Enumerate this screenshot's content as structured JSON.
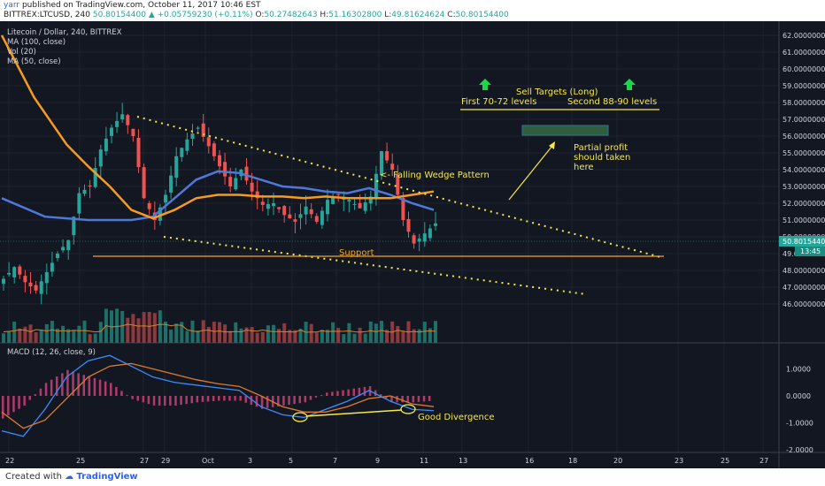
{
  "header": {
    "user": "yarr",
    "published": " published on TradingView.com, October 11, 2017 10:46 EST",
    "symbol": "BITTREX:LTCUSD, 240",
    "last": "50.80154400",
    "change": "▲ +0.05759230 (+0.11%)",
    "o_label": "O:",
    "o": "50.27482643",
    "h_label": "H:",
    "h": "51.16302800",
    "l_label": "L:",
    "l": "49.81624624",
    "c_label": "C:",
    "c": "50.80154400"
  },
  "legend": {
    "title": "Litecoin / Dollar, 240, BITTREX",
    "ma100": "MA (100, close)",
    "vol": "Vol (20)",
    "ma50": "MA (50, close)",
    "macd": "MACD (12, 26, close, 9)"
  },
  "annotations": {
    "sell_title": "Sell Targets (Long)",
    "first": "First 70-72 levels",
    "second": "Second 88-90 levels",
    "partial1": "Partial profit",
    "partial2": "should taken",
    "partial3": "here",
    "wedge": "<- Falling Wedge Pattern",
    "support": "Support",
    "divergence": "Good Divergence"
  },
  "price_badge": {
    "value": "50.80154400",
    "time": "13:45"
  },
  "footer": {
    "created": "Created with",
    "brand": "TradingView"
  },
  "colors": {
    "bg": "#131722",
    "up": "#26a69a",
    "down": "#ef5350",
    "ma100": "#4e79d9",
    "ma50": "#f59b20",
    "annot": "#f5e94a",
    "support": "#f5a623"
  },
  "chart_data": {
    "type": "line",
    "y_axis": {
      "ticks": [
        "62.00000000",
        "61.00000000",
        "60.00000000",
        "59.00000000",
        "58.00000000",
        "57.00000000",
        "56.00000000",
        "55.00000000",
        "54.00000000",
        "53.00000000",
        "52.00000000",
        "51.00000000",
        "50.00000000",
        "49.00000000",
        "48.00000000",
        "47.00000000",
        "46.00000000"
      ],
      "values": [
        62,
        61,
        60,
        59,
        58,
        57,
        56,
        55,
        54,
        53,
        52,
        51,
        50,
        49,
        48,
        47,
        46
      ],
      "ylim": [
        45.6,
        62.4
      ]
    },
    "macd_axis": {
      "ticks": [
        "1.0000",
        "0.0000",
        "-1.0000",
        "-2.0000"
      ],
      "values": [
        1,
        0,
        -1,
        -2
      ]
    },
    "x_axis": {
      "labels": [
        "22",
        "25",
        "27",
        "29",
        "Oct",
        "3",
        "5",
        "7",
        "9",
        "11",
        "13",
        "16",
        "18",
        "20",
        "23",
        "25",
        "27"
      ]
    },
    "series": [
      {
        "x": [
          0,
          2,
          4,
          6,
          8,
          10,
          12,
          14,
          16,
          18,
          20,
          22,
          24,
          26,
          28,
          30,
          32,
          34,
          36,
          38,
          40,
          42,
          44,
          46,
          48,
          50,
          52,
          54,
          56,
          58,
          60,
          62,
          64,
          66,
          68,
          70,
          72,
          74,
          76,
          78,
          80
        ],
        "values": [
          47.5,
          48.2,
          47.3,
          46.8,
          47.9,
          49.0,
          49.8,
          52.6,
          53.0,
          55.2,
          56.5,
          57.3,
          56.0,
          52.3,
          51.0,
          52.5,
          54.8,
          55.8,
          56.5,
          55.4,
          54.2,
          53.0,
          54.0,
          52.7,
          51.9,
          52.0,
          51.3,
          50.9,
          51.8,
          50.9,
          52.2,
          52.5,
          52.2,
          51.7,
          52.4,
          55.1,
          54.0,
          51.0,
          49.6,
          50.2,
          50.8
        ]
      },
      {
        "name": "MA (100, close)",
        "x": [
          0,
          8,
          16,
          24,
          28,
          32,
          36,
          40,
          44,
          48,
          52,
          56,
          60,
          64,
          68,
          72,
          76,
          80
        ],
        "values": [
          52.3,
          51.2,
          51.0,
          51.0,
          51.2,
          52.3,
          53.4,
          53.9,
          53.8,
          53.4,
          53.0,
          52.9,
          52.7,
          52.6,
          52.9,
          52.5,
          52.0,
          51.6
        ]
      },
      {
        "name": "MA (50, close)",
        "x": [
          0,
          6,
          12,
          16,
          20,
          24,
          28,
          32,
          36,
          40,
          44,
          48,
          52,
          56,
          60,
          64,
          68,
          72,
          76,
          80
        ],
        "values": [
          62.0,
          58.3,
          55.5,
          54.2,
          53.0,
          51.6,
          51.1,
          51.6,
          52.3,
          52.5,
          52.5,
          52.4,
          52.4,
          52.3,
          52.4,
          52.3,
          52.3,
          52.3,
          52.5,
          52.7
        ]
      },
      {
        "name": "MACD",
        "x": [
          0,
          4,
          8,
          12,
          16,
          20,
          24,
          28,
          32,
          36,
          40,
          44,
          48,
          52,
          56,
          60,
          64,
          68,
          72,
          76,
          80
        ],
        "values": [
          -1.3,
          -1.5,
          -0.5,
          0.7,
          1.3,
          1.5,
          1.1,
          0.7,
          0.5,
          0.4,
          0.3,
          0.2,
          -0.4,
          -0.7,
          -0.8,
          -0.5,
          -0.2,
          0.2,
          -0.2,
          -0.5,
          -0.55
        ]
      },
      {
        "name": "Signal",
        "x": [
          0,
          4,
          8,
          12,
          16,
          20,
          24,
          28,
          32,
          36,
          40,
          44,
          48,
          52,
          56,
          60,
          64,
          68,
          72,
          76,
          80
        ],
        "values": [
          -0.6,
          -1.2,
          -0.9,
          -0.1,
          0.7,
          1.1,
          1.2,
          1.0,
          0.8,
          0.6,
          0.45,
          0.35,
          0.0,
          -0.4,
          -0.6,
          -0.6,
          -0.4,
          -0.1,
          0.0,
          -0.3,
          -0.4
        ]
      }
    ],
    "annotation_levels": {
      "support": 50.0,
      "sell_line": 58.0,
      "partial_zone": [
        56.7,
        57.1
      ]
    }
  }
}
